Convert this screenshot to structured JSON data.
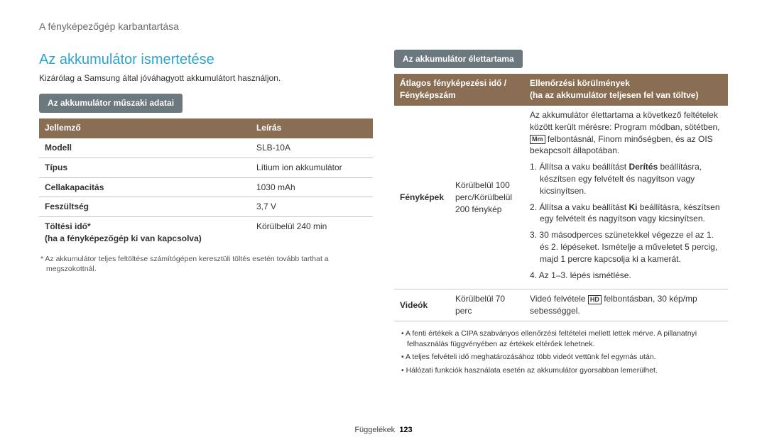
{
  "breadcrumb": "A fényképezőgép karbantartása",
  "left": {
    "title": "Az akkumulátor ismertetése",
    "lead": "Kizárólag a Samsung által jóváhagyott akkumulátort használjon.",
    "tag": "Az akkumulátor műszaki adatai",
    "table_head": {
      "c1": "Jellemző",
      "c2": "Leírás"
    },
    "rows": [
      {
        "label": "Modell",
        "value": "SLB-10A"
      },
      {
        "label": "Típus",
        "value": "Lítium ion akkumulátor"
      },
      {
        "label": "Cellakapacitás",
        "value": "1030 mAh"
      },
      {
        "label": "Feszültség",
        "value": "3,7 V"
      },
      {
        "label": "Töltési idő*",
        "sublabel": "(ha a fényképezőgép ki van kapcsolva)",
        "value": "Körülbelül 240 min"
      }
    ],
    "footnote": "* Az akkumulátor teljes feltöltése számítógépen keresztüli töltés esetén tovább tarthat a megszokottnál."
  },
  "right": {
    "tag": "Az akkumulátor élettartama",
    "head": {
      "c1a": "Átlagos fényképezési idő /",
      "c1b": "Fényképszám",
      "c2a": "Ellenőrzési körülmények",
      "c2b": "(ha az akkumulátor teljesen fel van töltve)"
    },
    "photos": {
      "rowhead": "Fényképek",
      "mid": "Körülbelül 100 perc/Körülbelül 200 fénykép",
      "intro_a": "Az akkumulátor élettartama a következő feltételek között került mérésre: Program módban, sötétben, ",
      "intro_icon": "Mm",
      "intro_b": " felbontásnál, Finom minőségben, és az OIS bekapcsolt állapotában.",
      "steps": [
        "1. Állítsa a vaku beállítást Derítés beállításra, készítsen egy felvételt és nagyítson vagy kicsinyítsen.",
        "2. Állítsa a vaku beállítást Ki beállításra, készítsen egy felvételt és nagyítson vagy kicsinyítsen.",
        "3. 30 másodperces szünetekkel végezze el az 1. és 2. lépéseket. Ismételje a műveletet 5 percig, majd 1 percre kapcsolja ki a kamerát.",
        "4. Az 1–3. lépés ismétlése."
      ]
    },
    "videos": {
      "rowhead": "Videók",
      "mid": "Körülbelül 70 perc",
      "desc_a": "Videó felvétele ",
      "desc_icon": "HD",
      "desc_b": " felbontásban, 30 kép/mp sebességgel."
    },
    "notes": [
      "A fenti értékek a CIPA szabványos ellenőrzési feltételei mellett lettek mérve. A pillanatnyi felhasználás függvényében az értékek eltérőek lehetnek.",
      "A teljes felvételi idő meghatározásához több videót vettünk fel egymás után.",
      "Hálózati funkciók használata esetén az akkumulátor gyorsabban lemerülhet."
    ]
  },
  "footer": {
    "label": "Függelékek",
    "page": "123"
  }
}
